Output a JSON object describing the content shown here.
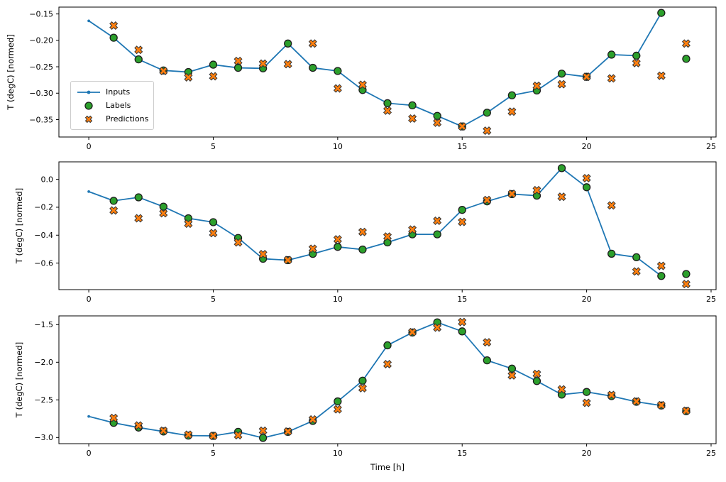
{
  "figure": {
    "background": "#ffffff",
    "xlabel": "Time [h]",
    "ylabel": "T (degC) [normed]"
  },
  "legend": {
    "items": [
      {
        "label": "Inputs"
      },
      {
        "label": "Labels"
      },
      {
        "label": "Predictions"
      }
    ]
  },
  "colors": {
    "inputs_line": "#1f77b4",
    "labels_marker": "#2ca02c",
    "predictions_marker": "#ff7f0e",
    "marker_edge": "#1c1c1c",
    "axis": "#000000"
  },
  "chart_data": [
    {
      "type": "line",
      "title": "",
      "xlabel": "",
      "ylabel": "T (degC) [normed]",
      "xlim": [
        -1.2,
        25.2
      ],
      "ylim": [
        -0.383,
        -0.137
      ],
      "x_ticks": {
        "values": [
          0,
          5,
          10,
          15,
          20,
          25
        ],
        "labels": [
          "0",
          "5",
          "10",
          "15",
          "20",
          "25"
        ]
      },
      "y_ticks": {
        "values": [
          -0.15,
          -0.2,
          -0.25,
          -0.3,
          -0.35
        ],
        "labels": [
          "−0.15",
          "−0.20",
          "−0.25",
          "−0.30",
          "−0.35"
        ]
      },
      "grid": false,
      "legend_position": "upper-left-inside",
      "series": [
        {
          "name": "Inputs",
          "kind": "line-dots",
          "color": "#1f77b4",
          "x": [
            0,
            1,
            2,
            3,
            4,
            5,
            6,
            7,
            8,
            9,
            10,
            11,
            12,
            13,
            14,
            15,
            16,
            17,
            18,
            19,
            20,
            21,
            22,
            23
          ],
          "y": [
            -0.163,
            -0.195,
            -0.236,
            -0.257,
            -0.26,
            -0.246,
            -0.252,
            -0.253,
            -0.206,
            -0.252,
            -0.258,
            -0.294,
            -0.319,
            -0.323,
            -0.343,
            -0.363,
            -0.337,
            -0.304,
            -0.295,
            -0.263,
            -0.269,
            -0.227,
            -0.229,
            -0.148
          ]
        },
        {
          "name": "Labels",
          "kind": "scatter-circle",
          "color": "#2ca02c",
          "edge": "#1c1c1c",
          "x": [
            1,
            2,
            3,
            4,
            5,
            6,
            7,
            8,
            9,
            10,
            11,
            12,
            13,
            14,
            15,
            16,
            17,
            18,
            19,
            20,
            21,
            22,
            23,
            24
          ],
          "y": [
            -0.195,
            -0.236,
            -0.257,
            -0.26,
            -0.246,
            -0.252,
            -0.253,
            -0.206,
            -0.252,
            -0.258,
            -0.294,
            -0.319,
            -0.323,
            -0.343,
            -0.363,
            -0.337,
            -0.304,
            -0.295,
            -0.263,
            -0.269,
            -0.227,
            -0.229,
            -0.148,
            -0.235
          ]
        },
        {
          "name": "Predictions",
          "kind": "scatter-x",
          "color": "#ff7f0e",
          "edge": "#333333",
          "x": [
            1,
            2,
            3,
            4,
            5,
            6,
            7,
            8,
            9,
            10,
            11,
            12,
            13,
            14,
            15,
            16,
            17,
            18,
            19,
            20,
            21,
            22,
            23,
            24
          ],
          "y": [
            -0.172,
            -0.218,
            -0.258,
            -0.27,
            -0.268,
            -0.239,
            -0.244,
            -0.245,
            -0.206,
            -0.291,
            -0.284,
            -0.333,
            -0.348,
            -0.356,
            -0.363,
            -0.371,
            -0.335,
            -0.286,
            -0.283,
            -0.269,
            -0.272,
            -0.243,
            -0.267,
            -0.206
          ]
        }
      ]
    },
    {
      "type": "line",
      "title": "",
      "xlabel": "",
      "ylabel": "T (degC) [normed]",
      "xlim": [
        -1.2,
        25.2
      ],
      "ylim": [
        -0.79,
        0.125
      ],
      "x_ticks": {
        "values": [
          0,
          5,
          10,
          15,
          20,
          25
        ],
        "labels": [
          "0",
          "5",
          "10",
          "15",
          "20",
          "25"
        ]
      },
      "y_ticks": {
        "values": [
          0.0,
          -0.2,
          -0.4,
          -0.6
        ],
        "labels": [
          "0.0",
          "−0.2",
          "−0.4",
          "−0.6"
        ]
      },
      "grid": false,
      "legend_position": "none",
      "series": [
        {
          "name": "Inputs",
          "kind": "line-dots",
          "color": "#1f77b4",
          "x": [
            0,
            1,
            2,
            3,
            4,
            5,
            6,
            7,
            8,
            9,
            10,
            11,
            12,
            13,
            14,
            15,
            16,
            17,
            18,
            19,
            20,
            21,
            22,
            23
          ],
          "y": [
            -0.088,
            -0.154,
            -0.129,
            -0.196,
            -0.279,
            -0.307,
            -0.42,
            -0.569,
            -0.579,
            -0.534,
            -0.484,
            -0.503,
            -0.452,
            -0.394,
            -0.394,
            -0.219,
            -0.158,
            -0.106,
            -0.117,
            0.08,
            -0.057,
            -0.533,
            -0.558,
            -0.692
          ]
        },
        {
          "name": "Labels",
          "kind": "scatter-circle",
          "color": "#2ca02c",
          "edge": "#1c1c1c",
          "x": [
            1,
            2,
            3,
            4,
            5,
            6,
            7,
            8,
            9,
            10,
            11,
            12,
            13,
            14,
            15,
            16,
            17,
            18,
            19,
            20,
            21,
            22,
            23,
            24
          ],
          "y": [
            -0.154,
            -0.129,
            -0.196,
            -0.279,
            -0.307,
            -0.42,
            -0.569,
            -0.579,
            -0.534,
            -0.484,
            -0.503,
            -0.452,
            -0.394,
            -0.394,
            -0.219,
            -0.158,
            -0.106,
            -0.117,
            0.08,
            -0.057,
            -0.533,
            -0.558,
            -0.692,
            -0.678
          ]
        },
        {
          "name": "Predictions",
          "kind": "scatter-x",
          "color": "#ff7f0e",
          "edge": "#333333",
          "x": [
            1,
            2,
            3,
            4,
            5,
            6,
            7,
            8,
            9,
            10,
            11,
            12,
            13,
            14,
            15,
            16,
            17,
            18,
            19,
            20,
            21,
            22,
            23,
            24
          ],
          "y": [
            -0.223,
            -0.279,
            -0.243,
            -0.318,
            -0.385,
            -0.452,
            -0.536,
            -0.578,
            -0.497,
            -0.43,
            -0.377,
            -0.41,
            -0.36,
            -0.297,
            -0.305,
            -0.148,
            -0.104,
            -0.078,
            -0.125,
            0.008,
            -0.187,
            -0.66,
            -0.62,
            -0.75
          ]
        }
      ]
    },
    {
      "type": "line",
      "title": "",
      "xlabel": "Time [h]",
      "ylabel": "T (degC) [normed]",
      "xlim": [
        -1.2,
        25.2
      ],
      "ylim": [
        -3.082,
        -1.384
      ],
      "x_ticks": {
        "values": [
          0,
          5,
          10,
          15,
          20,
          25
        ],
        "labels": [
          "0",
          "5",
          "10",
          "15",
          "20",
          "25"
        ]
      },
      "y_ticks": {
        "values": [
          -1.5,
          -2.0,
          -2.5,
          -3.0
        ],
        "labels": [
          "−1.5",
          "−2.0",
          "−2.5",
          "−3.0"
        ]
      },
      "grid": false,
      "legend_position": "none",
      "series": [
        {
          "name": "Inputs",
          "kind": "line-dots",
          "color": "#1f77b4",
          "x": [
            0,
            1,
            2,
            3,
            4,
            5,
            6,
            7,
            8,
            9,
            10,
            11,
            12,
            13,
            14,
            15,
            16,
            17,
            18,
            19,
            20,
            21,
            22,
            23
          ],
          "y": [
            -2.72,
            -2.805,
            -2.868,
            -2.92,
            -2.975,
            -2.978,
            -2.925,
            -3.005,
            -2.925,
            -2.78,
            -2.52,
            -2.245,
            -1.775,
            -1.605,
            -1.47,
            -1.59,
            -1.975,
            -2.085,
            -2.25,
            -2.43,
            -2.395,
            -2.45,
            -2.525,
            -2.575
          ]
        },
        {
          "name": "Labels",
          "kind": "scatter-circle",
          "color": "#2ca02c",
          "edge": "#1c1c1c",
          "x": [
            1,
            2,
            3,
            4,
            5,
            6,
            7,
            8,
            9,
            10,
            11,
            12,
            13,
            14,
            15,
            16,
            17,
            18,
            19,
            20,
            21,
            22,
            23,
            24
          ],
          "y": [
            -2.805,
            -2.868,
            -2.92,
            -2.975,
            -2.978,
            -2.925,
            -3.005,
            -2.925,
            -2.78,
            -2.52,
            -2.245,
            -1.775,
            -1.605,
            -1.47,
            -1.59,
            -1.975,
            -2.085,
            -2.25,
            -2.43,
            -2.395,
            -2.45,
            -2.525,
            -2.575,
            -2.65
          ]
        },
        {
          "name": "Predictions",
          "kind": "scatter-x",
          "color": "#ff7f0e",
          "edge": "#333333",
          "x": [
            1,
            2,
            3,
            4,
            5,
            6,
            7,
            8,
            9,
            10,
            11,
            12,
            13,
            14,
            15,
            16,
            17,
            18,
            19,
            20,
            21,
            22,
            23,
            24
          ],
          "y": [
            -2.74,
            -2.84,
            -2.91,
            -2.963,
            -2.978,
            -2.97,
            -2.91,
            -2.92,
            -2.76,
            -2.625,
            -2.345,
            -2.025,
            -1.6,
            -1.54,
            -1.465,
            -1.735,
            -2.175,
            -2.155,
            -2.36,
            -2.54,
            -2.435,
            -2.52,
            -2.57,
            -2.645
          ]
        }
      ]
    }
  ]
}
